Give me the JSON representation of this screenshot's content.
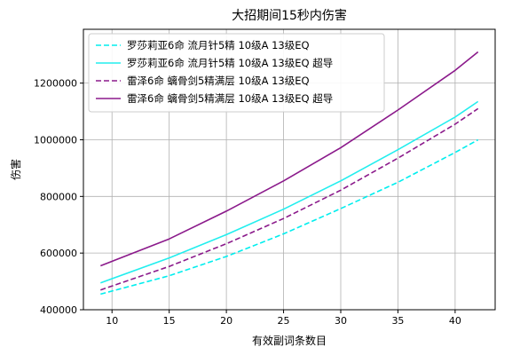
{
  "chart_data": {
    "type": "line",
    "title": "大招期间15秒内伤害",
    "xlabel": "有效副词条数目",
    "ylabel": "伤害",
    "xlim": [
      7.5,
      43.5
    ],
    "ylim": [
      400000,
      1390000
    ],
    "xticks": [
      10,
      15,
      20,
      25,
      30,
      35,
      40
    ],
    "yticks": [
      400000,
      600000,
      800000,
      1000000,
      1200000
    ],
    "xtick_labels": [
      "10",
      "15",
      "20",
      "25",
      "30",
      "35",
      "40"
    ],
    "ytick_labels": [
      "400000",
      "600000",
      "800000",
      "1000000",
      "1200000"
    ],
    "grid": true,
    "legend_position": "top-left",
    "x": [
      9,
      15,
      20,
      25,
      30,
      35,
      40,
      42
    ],
    "series": [
      {
        "name": "罗莎莉亚6命 流月针5精 10级A 13级EQ",
        "color": "#00eeee",
        "dash": "dashed",
        "values": [
          455000,
          520000,
          588000,
          668000,
          757000,
          850000,
          955000,
          1000000
        ]
      },
      {
        "name": "罗莎莉亚6命 流月针5精 10级A 13级EQ 超导",
        "color": "#22eeee",
        "dash": "solid",
        "values": [
          495000,
          583000,
          665000,
          755000,
          855000,
          965000,
          1080000,
          1135000
        ]
      },
      {
        "name": "雷泽6命 螭骨剑5精满层 10级A 13级EQ",
        "color": "#8b1a8b",
        "dash": "dashed",
        "values": [
          470000,
          553000,
          633000,
          722000,
          822000,
          935000,
          1055000,
          1110000
        ]
      },
      {
        "name": "雷泽6命 螭骨剑5精满层 10级A 13级EQ 超导",
        "color": "#8b1a8b",
        "dash": "solid",
        "values": [
          555000,
          650000,
          748000,
          855000,
          972000,
          1105000,
          1245000,
          1310000
        ]
      }
    ]
  }
}
